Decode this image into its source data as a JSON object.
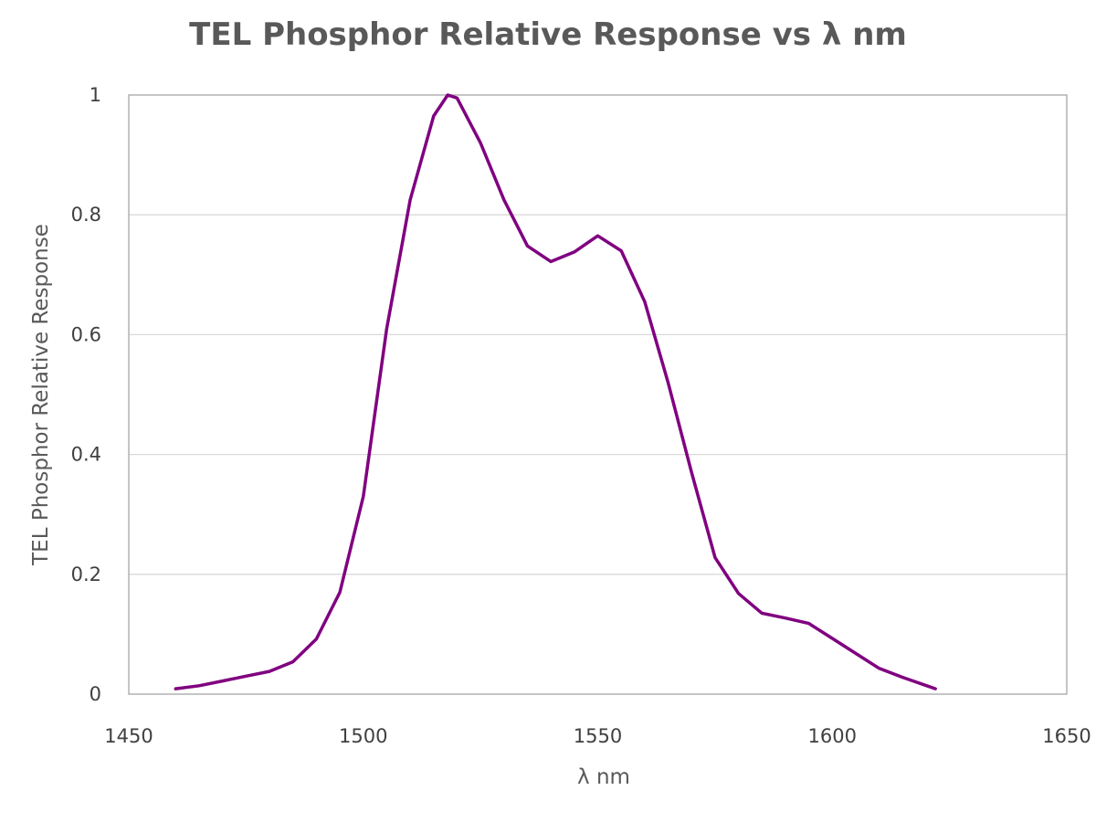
{
  "chart_data": {
    "type": "line",
    "title": "TEL Phosphor Relative Response vs λ nm",
    "xlabel": "λ nm",
    "ylabel": "TEL Phosphor Relative Response",
    "xlim": [
      1450,
      1650
    ],
    "ylim": [
      0,
      1
    ],
    "x_ticks": [
      "1450",
      "1500",
      "1550",
      "1600",
      "1650"
    ],
    "y_ticks": [
      "0",
      "0.2",
      "0.4",
      "0.6",
      "0.8",
      "1"
    ],
    "grid": true,
    "legend": "none",
    "series": [
      {
        "color": "#800080",
        "x": [
          1460,
          1465,
          1470,
          1475,
          1480,
          1485,
          1490,
          1495,
          1500,
          1505,
          1510,
          1515,
          1518,
          1520,
          1525,
          1530,
          1535,
          1540,
          1545,
          1550,
          1555,
          1560,
          1565,
          1570,
          1575,
          1580,
          1585,
          1590,
          1595,
          1600,
          1605,
          1610,
          1615,
          1622
        ],
        "y": [
          0.009,
          0.014,
          0.022,
          0.03,
          0.038,
          0.054,
          0.092,
          0.17,
          0.33,
          0.61,
          0.825,
          0.965,
          1.0,
          0.995,
          0.92,
          0.825,
          0.748,
          0.722,
          0.738,
          0.765,
          0.74,
          0.655,
          0.52,
          0.37,
          0.228,
          0.168,
          0.135,
          0.127,
          0.118,
          0.093,
          0.068,
          0.043,
          0.028,
          0.009
        ]
      }
    ]
  }
}
